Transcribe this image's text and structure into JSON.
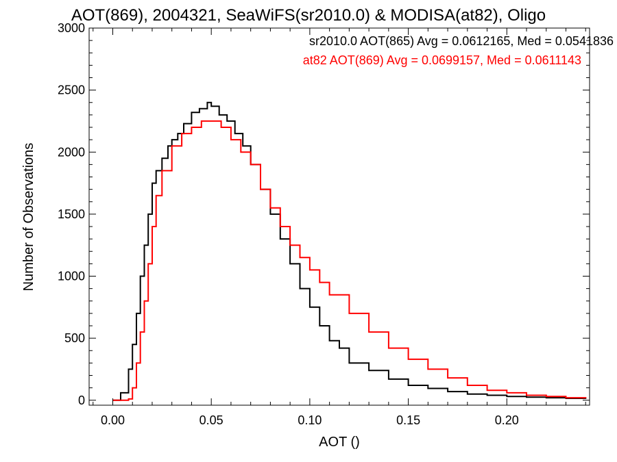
{
  "chart_data": {
    "type": "line",
    "title": "AOT(869), 2004321, SeaWiFS(sr2010.0) & MODISA(at82), Oligo",
    "xlabel": "AOT ()",
    "ylabel": "Number of Observations",
    "xlim": [
      -0.012,
      0.242
    ],
    "ylim": [
      -40,
      3000
    ],
    "x_ticks": [
      0.0,
      0.05,
      0.1,
      0.15,
      0.2
    ],
    "x_tick_labels": [
      "0.00",
      "0.05",
      "0.10",
      "0.15",
      "0.20"
    ],
    "y_ticks": [
      0,
      500,
      1000,
      1500,
      2000,
      2500,
      3000
    ],
    "y_tick_labels": [
      "0",
      "500",
      "1000",
      "1500",
      "2000",
      "2500",
      "3000"
    ],
    "grid": false,
    "legend_placement": "top-right",
    "series": [
      {
        "color": "#000000",
        "annotation": "sr2010.0 AOT(865) Avg = 0.0612165, Med = 0.0541836",
        "x": [
          0.0,
          0.004,
          0.008,
          0.01,
          0.012,
          0.014,
          0.016,
          0.018,
          0.02,
          0.022,
          0.025,
          0.028,
          0.03,
          0.033,
          0.036,
          0.04,
          0.044,
          0.048,
          0.05,
          0.054,
          0.058,
          0.062,
          0.066,
          0.07,
          0.075,
          0.08,
          0.085,
          0.09,
          0.095,
          0.1,
          0.105,
          0.11,
          0.115,
          0.12,
          0.13,
          0.14,
          0.15,
          0.16,
          0.17,
          0.18,
          0.19,
          0.2,
          0.21,
          0.22,
          0.23,
          0.24
        ],
        "y": [
          0,
          60,
          250,
          450,
          700,
          1000,
          1250,
          1500,
          1750,
          1850,
          1950,
          2050,
          2100,
          2150,
          2230,
          2320,
          2350,
          2400,
          2370,
          2300,
          2250,
          2150,
          2050,
          1900,
          1700,
          1500,
          1300,
          1100,
          900,
          750,
          600,
          480,
          420,
          300,
          240,
          170,
          120,
          95,
          70,
          50,
          40,
          30,
          25,
          20,
          15,
          10
        ]
      },
      {
        "color": "#ff0000",
        "annotation": "at82 AOT(869) Avg = 0.0699157, Med = 0.0611143",
        "x": [
          0.0,
          0.005,
          0.008,
          0.01,
          0.012,
          0.014,
          0.016,
          0.018,
          0.02,
          0.022,
          0.025,
          0.03,
          0.035,
          0.04,
          0.045,
          0.05,
          0.055,
          0.06,
          0.065,
          0.07,
          0.075,
          0.08,
          0.085,
          0.09,
          0.095,
          0.1,
          0.105,
          0.11,
          0.12,
          0.13,
          0.14,
          0.15,
          0.16,
          0.17,
          0.18,
          0.19,
          0.2,
          0.21,
          0.22,
          0.23,
          0.24
        ],
        "y": [
          0,
          0,
          10,
          100,
          300,
          550,
          800,
          1100,
          1400,
          1650,
          1850,
          2050,
          2150,
          2200,
          2250,
          2250,
          2200,
          2100,
          2000,
          1900,
          1700,
          1550,
          1400,
          1250,
          1150,
          1050,
          950,
          850,
          700,
          550,
          420,
          330,
          250,
          180,
          120,
          80,
          60,
          40,
          30,
          20,
          15
        ]
      }
    ]
  }
}
